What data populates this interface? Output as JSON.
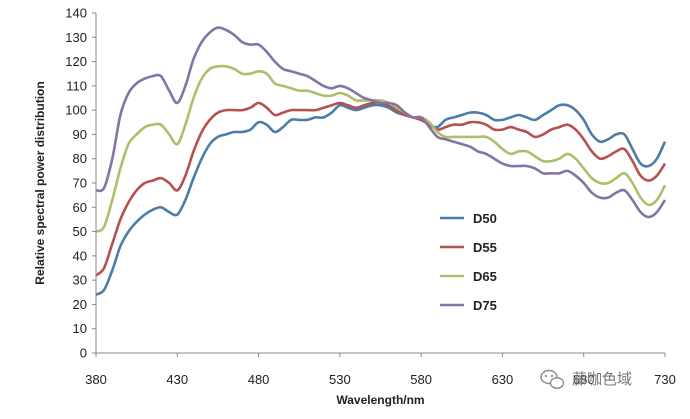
{
  "chart_data": {
    "type": "line",
    "xlabel": "Wavelength/nm",
    "ylabel": "Relative spectral power distribution",
    "xlim": [
      380,
      730
    ],
    "ylim": [
      0,
      140
    ],
    "x_ticks": [
      380,
      430,
      480,
      530,
      580,
      630,
      680,
      730
    ],
    "y_ticks": [
      0,
      10,
      20,
      30,
      40,
      50,
      60,
      70,
      80,
      90,
      100,
      110,
      120,
      130,
      140
    ],
    "grid": false,
    "legend_position": "right-center",
    "x": [
      380,
      385,
      390,
      395,
      400,
      405,
      410,
      415,
      420,
      425,
      430,
      435,
      440,
      445,
      450,
      455,
      460,
      465,
      470,
      475,
      480,
      485,
      490,
      495,
      500,
      505,
      510,
      515,
      520,
      525,
      530,
      535,
      540,
      545,
      550,
      555,
      560,
      565,
      570,
      575,
      580,
      585,
      590,
      595,
      600,
      605,
      610,
      615,
      620,
      625,
      630,
      635,
      640,
      645,
      650,
      655,
      660,
      665,
      670,
      675,
      680,
      685,
      690,
      695,
      700,
      705,
      710,
      715,
      720,
      725,
      730
    ],
    "series": [
      {
        "name": "D50",
        "color": "#4a7ea8",
        "values": [
          24,
          26,
          34,
          44,
          50,
          54,
          57,
          59,
          60,
          58,
          57,
          63,
          72,
          80,
          86,
          89,
          90,
          91,
          91,
          92,
          95,
          94,
          91,
          93,
          96,
          96,
          96,
          97,
          97,
          99,
          102,
          101,
          100,
          101,
          102,
          102,
          101,
          99,
          98,
          97,
          96,
          94,
          93,
          96,
          97,
          98,
          99,
          99,
          98,
          96,
          96,
          97,
          98,
          97,
          96,
          98,
          100,
          102,
          102,
          100,
          96,
          90,
          87,
          88,
          90,
          90,
          84,
          78,
          77,
          80,
          87
        ]
      },
      {
        "name": "D55",
        "color": "#b5514e",
        "values": [
          32,
          35,
          45,
          55,
          62,
          67,
          70,
          71,
          72,
          70,
          67,
          73,
          83,
          91,
          96,
          99,
          100,
          100,
          100,
          101,
          103,
          101,
          98,
          99,
          100,
          100,
          100,
          100,
          101,
          102,
          103,
          102,
          101,
          102,
          103,
          103,
          102,
          100,
          98,
          97,
          96,
          94,
          92,
          93,
          94,
          94,
          95,
          95,
          94,
          92,
          92,
          93,
          92,
          91,
          89,
          90,
          92,
          93,
          94,
          92,
          88,
          83,
          80,
          81,
          83,
          84,
          79,
          73,
          71,
          73,
          78
        ]
      },
      {
        "name": "D65",
        "color": "#a9c16a",
        "values": [
          50,
          52,
          63,
          76,
          86,
          90,
          93,
          94,
          94,
          90,
          86,
          94,
          105,
          113,
          117,
          118,
          118,
          117,
          115,
          115,
          116,
          115,
          111,
          110,
          109,
          108,
          108,
          107,
          106,
          106,
          107,
          106,
          104,
          104,
          104,
          104,
          103,
          101,
          99,
          97,
          97,
          95,
          91,
          89,
          89,
          89,
          89,
          89,
          89,
          87,
          84,
          82,
          83,
          83,
          81,
          79,
          79,
          80,
          82,
          80,
          76,
          72,
          70,
          70,
          72,
          74,
          70,
          64,
          61,
          63,
          69
        ]
      },
      {
        "name": "D75",
        "color": "#8573a6",
        "values": [
          67,
          68,
          80,
          98,
          107,
          111,
          113,
          114,
          114,
          108,
          103,
          110,
          121,
          128,
          132,
          134,
          133,
          131,
          128,
          127,
          127,
          124,
          120,
          117,
          116,
          115,
          114,
          112,
          110,
          109,
          110,
          109,
          107,
          105,
          104,
          103,
          103,
          102,
          99,
          97,
          97,
          93,
          89,
          88,
          87,
          86,
          85,
          83,
          82,
          80,
          78,
          77,
          77,
          77,
          76,
          74,
          74,
          74,
          75,
          73,
          70,
          66,
          64,
          64,
          66,
          67,
          63,
          58,
          56,
          58,
          63
        ]
      }
    ]
  },
  "watermark": "藤咖色域"
}
